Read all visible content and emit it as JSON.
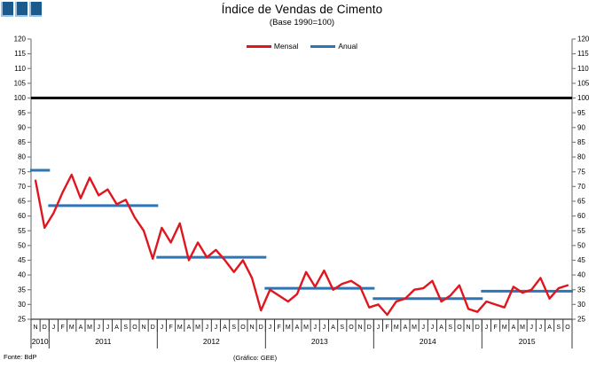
{
  "header": {
    "title": "Índice de Vendas de Cimento",
    "subtitle": "(Base 1990=100)"
  },
  "footer": {
    "source": "Fonte: BdP",
    "credit": "(Gráfico: GEE)"
  },
  "colors": {
    "mensal": "#e0161f",
    "anual": "#2e75b6",
    "reference": "#000000",
    "yaxis": "#808080",
    "xaxis": "#3a3a3a",
    "logo_fill": "#1a5a8c",
    "logo_border": "#9dc3e6"
  },
  "chart_data": {
    "type": "line",
    "title": "Índice de Vendas de Cimento",
    "subtitle": "(Base 1990=100)",
    "xlabel": "",
    "ylabel": "",
    "ylim": [
      25,
      120
    ],
    "ytick_step": 5,
    "reference_line": 100,
    "grid": false,
    "legend_position": "top-center",
    "years": [
      {
        "label": "2010",
        "months": [
          "N",
          "D"
        ]
      },
      {
        "label": "2011",
        "months": [
          "J",
          "F",
          "M",
          "A",
          "M",
          "J",
          "J",
          "A",
          "S",
          "O",
          "N",
          "D"
        ]
      },
      {
        "label": "2012",
        "months": [
          "J",
          "F",
          "M",
          "A",
          "M",
          "J",
          "J",
          "A",
          "S",
          "O",
          "N",
          "D"
        ]
      },
      {
        "label": "2013",
        "months": [
          "J",
          "F",
          "M",
          "A",
          "M",
          "J",
          "J",
          "A",
          "S",
          "O",
          "N",
          "D"
        ]
      },
      {
        "label": "2014",
        "months": [
          "J",
          "F",
          "M",
          "A",
          "M",
          "J",
          "J",
          "A",
          "S",
          "O",
          "N",
          "D"
        ]
      },
      {
        "label": "2015",
        "months": [
          "J",
          "F",
          "M",
          "A",
          "M",
          "J",
          "J",
          "A",
          "S",
          "O"
        ]
      }
    ],
    "series": [
      {
        "name": "Mensal",
        "style": "monthly-line",
        "values": [
          72,
          56,
          61,
          68,
          74,
          66,
          73,
          67,
          69,
          64,
          65.5,
          59.5,
          55,
          45.5,
          56,
          51,
          57.5,
          45,
          51,
          46,
          48.5,
          45,
          41,
          45,
          39,
          28,
          35,
          33,
          31,
          33.5,
          41,
          36,
          41.5,
          35,
          37,
          38,
          36,
          29,
          30,
          26.5,
          31,
          32,
          35,
          35.5,
          38,
          31,
          33,
          36.5,
          28.5,
          27.5,
          31,
          30,
          29,
          36,
          34,
          35,
          39,
          32,
          35.5,
          36.5
        ]
      },
      {
        "name": "Anual",
        "style": "annual-segments",
        "segments": [
          {
            "year": "2010",
            "value": 75.5
          },
          {
            "year": "2011",
            "value": 63.5
          },
          {
            "year": "2012",
            "value": 46
          },
          {
            "year": "2013",
            "value": 35.5
          },
          {
            "year": "2014",
            "value": 32
          },
          {
            "year": "2015",
            "value": 34.5
          }
        ]
      }
    ]
  }
}
